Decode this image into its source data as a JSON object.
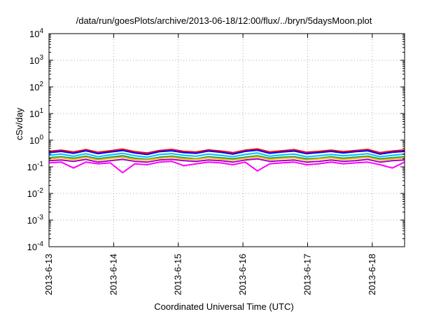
{
  "chart_data": {
    "type": "line",
    "title": "/data/run/goesPlots/archive/2013-06-18/12:00/flux/../bryn/5daysMoon.plot",
    "xlabel": "Coordinated Universal Time (UTC)",
    "ylabel": "cSv/day",
    "yscale": "log",
    "ylim": [
      0.0001,
      10000
    ],
    "xlim": [
      "2013-06-13",
      "2013-06-18 12:00"
    ],
    "grid": true,
    "xticks": [
      "2013-6-13",
      "2013-6-14",
      "2013-6-15",
      "2013-6-16",
      "2013-6-17",
      "2013-6-18"
    ],
    "yticks": [
      {
        "base": "10",
        "exp": "-4"
      },
      {
        "base": "10",
        "exp": "-3"
      },
      {
        "base": "10",
        "exp": "-2"
      },
      {
        "base": "10",
        "exp": "-1"
      },
      {
        "base": "10",
        "exp": "0"
      },
      {
        "base": "10",
        "exp": "1"
      },
      {
        "base": "10",
        "exp": "2"
      },
      {
        "base": "10",
        "exp": "3"
      },
      {
        "base": "10",
        "exp": "4"
      }
    ],
    "series": [
      {
        "color": "#ff0000",
        "values": [
          0.38,
          0.42,
          0.36,
          0.44,
          0.35,
          0.4,
          0.46,
          0.37,
          0.33,
          0.41,
          0.45,
          0.38,
          0.36,
          0.43,
          0.39,
          0.34,
          0.42,
          0.47,
          0.36,
          0.4,
          0.44,
          0.35,
          0.38,
          0.42,
          0.37,
          0.41,
          0.45,
          0.34,
          0.39,
          0.43
        ]
      },
      {
        "color": "#0000ff",
        "values": [
          0.34,
          0.38,
          0.32,
          0.4,
          0.31,
          0.36,
          0.41,
          0.33,
          0.29,
          0.37,
          0.4,
          0.34,
          0.32,
          0.39,
          0.35,
          0.3,
          0.38,
          0.42,
          0.32,
          0.36,
          0.39,
          0.31,
          0.34,
          0.38,
          0.33,
          0.37,
          0.4,
          0.3,
          0.35,
          0.38
        ]
      },
      {
        "color": "#00c0ff",
        "values": [
          0.27,
          0.3,
          0.25,
          0.31,
          0.24,
          0.28,
          0.32,
          0.26,
          0.23,
          0.29,
          0.31,
          0.27,
          0.25,
          0.3,
          0.27,
          0.24,
          0.29,
          0.33,
          0.25,
          0.28,
          0.3,
          0.24,
          0.26,
          0.29,
          0.26,
          0.28,
          0.31,
          0.24,
          0.27,
          0.3
        ]
      },
      {
        "color": "#00a060",
        "values": [
          0.22,
          0.24,
          0.21,
          0.25,
          0.2,
          0.23,
          0.26,
          0.21,
          0.19,
          0.23,
          0.25,
          0.22,
          0.2,
          0.24,
          0.22,
          0.2,
          0.23,
          0.26,
          0.21,
          0.23,
          0.24,
          0.2,
          0.21,
          0.24,
          0.21,
          0.23,
          0.25,
          0.2,
          0.22,
          0.24
        ]
      },
      {
        "color": "#ffb000",
        "values": [
          0.2,
          0.22,
          0.19,
          0.23,
          0.18,
          0.21,
          0.23,
          0.19,
          0.18,
          0.21,
          0.23,
          0.2,
          0.19,
          0.22,
          0.2,
          0.18,
          0.21,
          0.24,
          0.19,
          0.21,
          0.22,
          0.18,
          0.2,
          0.22,
          0.19,
          0.21,
          0.23,
          0.18,
          0.2,
          0.22
        ]
      },
      {
        "color": "#a000c0",
        "values": [
          0.17,
          0.18,
          0.16,
          0.19,
          0.15,
          0.17,
          0.19,
          0.16,
          0.15,
          0.18,
          0.19,
          0.17,
          0.16,
          0.18,
          0.17,
          0.15,
          0.18,
          0.2,
          0.16,
          0.17,
          0.18,
          0.15,
          0.16,
          0.18,
          0.16,
          0.17,
          0.19,
          0.15,
          0.17,
          0.18
        ]
      },
      {
        "color": "#ff00ff",
        "values": [
          0.14,
          0.15,
          0.09,
          0.15,
          0.13,
          0.14,
          0.06,
          0.13,
          0.12,
          0.15,
          0.16,
          0.11,
          0.13,
          0.15,
          0.14,
          0.12,
          0.15,
          0.07,
          0.13,
          0.14,
          0.15,
          0.12,
          0.13,
          0.15,
          0.13,
          0.14,
          0.15,
          0.12,
          0.09,
          0.15
        ]
      }
    ]
  }
}
